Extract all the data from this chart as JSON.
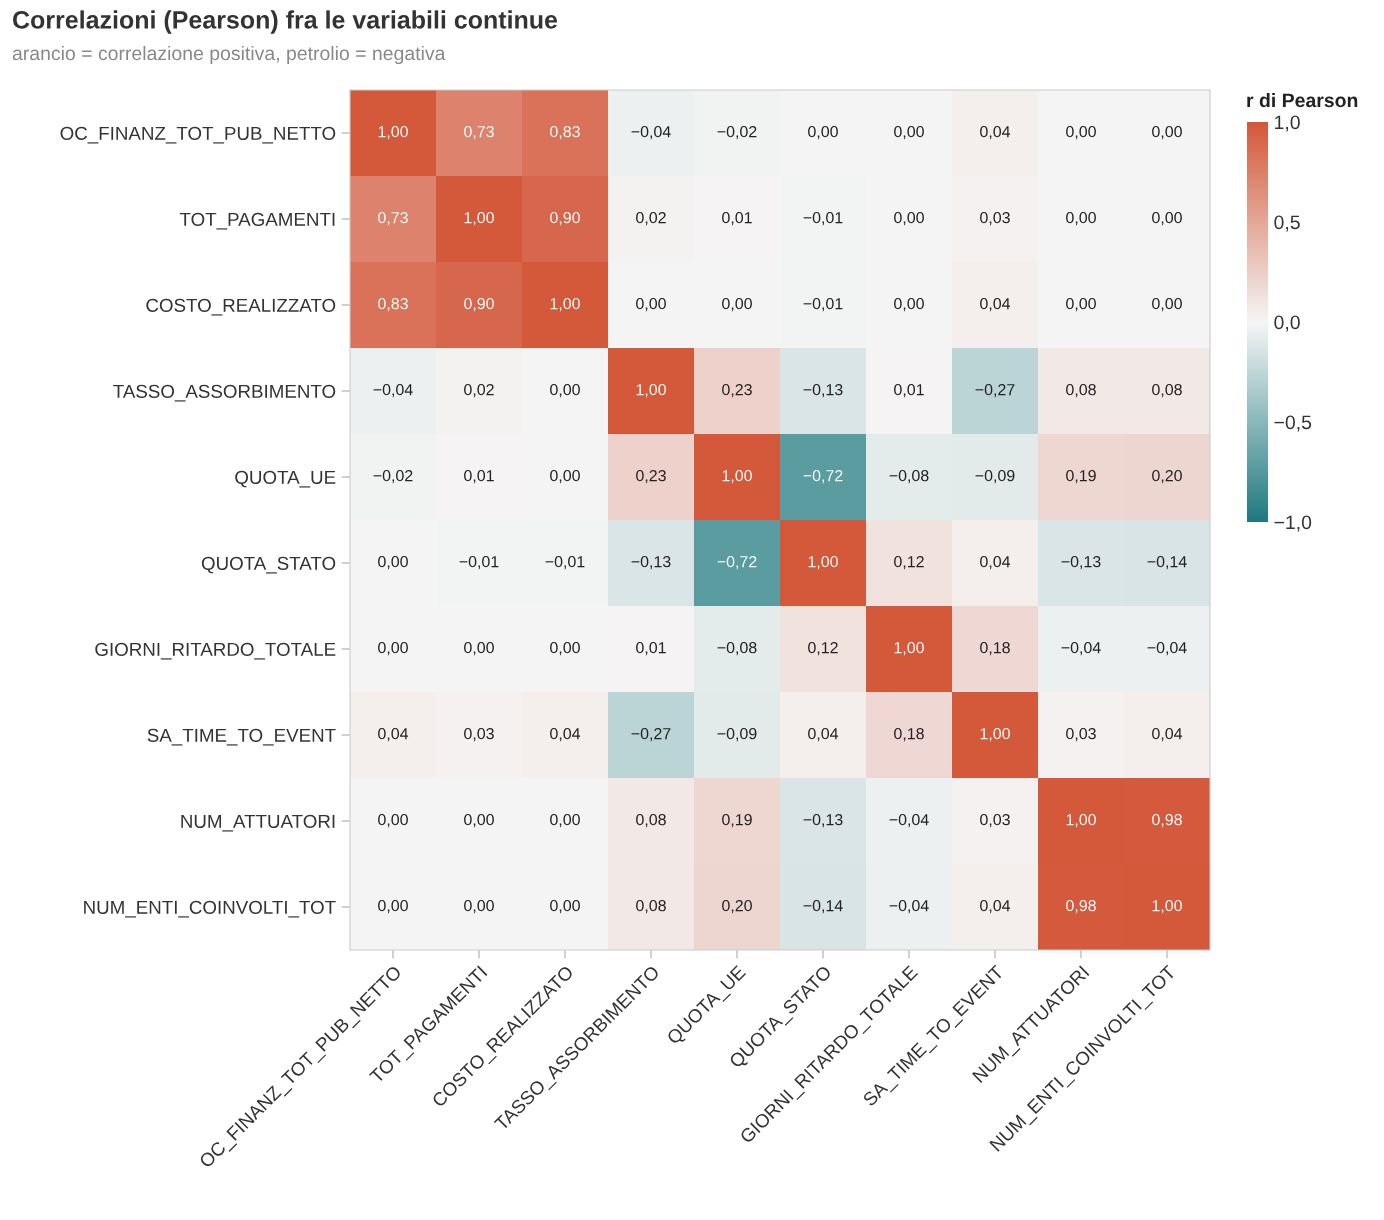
{
  "chart_data": {
    "type": "heatmap",
    "title": "Correlazioni (Pearson) fra le variabili continue",
    "subtitle": "arancio = correlazione positiva, petrolio = negativa",
    "clabel": "r di Pearson",
    "categories": [
      "OC_FINANZ_TOT_PUB_NETTO",
      "TOT_PAGAMENTI",
      "COSTO_REALIZZATO",
      "TASSO_ASSORBIMENTO",
      "QUOTA_UE",
      "QUOTA_STATO",
      "GIORNI_RITARDO_TOTALE",
      "SA_TIME_TO_EVENT",
      "NUM_ATTUATORI",
      "NUM_ENTI_COINVOLTI_TOT"
    ],
    "y_categories": [
      "OC_FINANZ_TOT_PUB_NETTO",
      "TOT_PAGAMENTI",
      "COSTO_REALIZZATO",
      "TASSO_ASSORBIMENTO",
      "QUOTA_UE",
      "QUOTA_STATO",
      "GIORNI_RITARDO_TOTALE",
      "SA_TIME_TO_EVENT",
      "NUM_ATTUATORI",
      "NUM_ENTI_COINVOLTI_TOT"
    ],
    "cells": [
      [
        1.0,
        0.73,
        0.83,
        -0.04,
        -0.02,
        0.0,
        0.0,
        0.04,
        0.0,
        0.0
      ],
      [
        0.73,
        1.0,
        0.9,
        0.02,
        0.01,
        -0.01,
        0.0,
        0.03,
        0.0,
        0.0
      ],
      [
        0.83,
        0.9,
        1.0,
        0.0,
        0.0,
        -0.01,
        0.0,
        0.04,
        0.0,
        0.0
      ],
      [
        -0.04,
        0.02,
        0.0,
        1.0,
        0.23,
        -0.13,
        0.01,
        -0.27,
        0.08,
        0.08
      ],
      [
        -0.02,
        0.01,
        0.0,
        0.23,
        1.0,
        -0.72,
        -0.08,
        -0.09,
        0.19,
        0.2
      ],
      [
        0.0,
        -0.01,
        -0.01,
        -0.13,
        -0.72,
        1.0,
        0.12,
        0.04,
        -0.13,
        -0.14
      ],
      [
        0.0,
        0.0,
        0.0,
        0.01,
        -0.08,
        0.12,
        1.0,
        0.18,
        -0.04,
        -0.04
      ],
      [
        0.04,
        0.03,
        0.04,
        -0.27,
        -0.09,
        0.04,
        0.18,
        1.0,
        0.03,
        0.04
      ],
      [
        0.0,
        0.0,
        0.0,
        0.08,
        0.19,
        -0.13,
        -0.04,
        0.03,
        1.0,
        0.98
      ],
      [
        0.0,
        0.0,
        0.0,
        0.08,
        0.2,
        -0.14,
        -0.04,
        0.04,
        0.98,
        1.0
      ]
    ],
    "cell_labels": [
      [
        "1,00",
        "0,73",
        "0,83",
        "−0,04",
        "−0,02",
        "0,00",
        "0,00",
        "0,04",
        "0,00",
        "0,00"
      ],
      [
        "0,73",
        "1,00",
        "0,90",
        "0,02",
        "0,01",
        "−0,01",
        "0,00",
        "0,03",
        "0,00",
        "0,00"
      ],
      [
        "0,83",
        "0,90",
        "1,00",
        "0,00",
        "0,00",
        "−0,01",
        "0,00",
        "0,04",
        "0,00",
        "0,00"
      ],
      [
        "−0,04",
        "0,02",
        "0,00",
        "1,00",
        "0,23",
        "−0,13",
        "0,01",
        "−0,27",
        "0,08",
        "0,08"
      ],
      [
        "−0,02",
        "0,01",
        "0,00",
        "0,23",
        "1,00",
        "−0,72",
        "−0,08",
        "−0,09",
        "0,19",
        "0,20"
      ],
      [
        "0,00",
        "−0,01",
        "−0,01",
        "−0,13",
        "−0,72",
        "1,00",
        "0,12",
        "0,04",
        "−0,13",
        "−0,14"
      ],
      [
        "0,00",
        "0,00",
        "0,00",
        "0,01",
        "−0,08",
        "0,12",
        "1,00",
        "0,18",
        "−0,04",
        "−0,04"
      ],
      [
        "0,04",
        "0,03",
        "0,04",
        "−0,27",
        "−0,09",
        "0,04",
        "0,18",
        "1,00",
        "0,03",
        "0,04"
      ],
      [
        "0,00",
        "0,00",
        "0,00",
        "0,08",
        "0,19",
        "−0,13",
        "−0,04",
        "0,03",
        "1,00",
        "0,98"
      ],
      [
        "0,00",
        "0,00",
        "0,00",
        "0,08",
        "0,20",
        "−0,14",
        "−0,04",
        "0,04",
        "0,98",
        "1,00"
      ]
    ],
    "colors": [
      "#1f7a80",
      "#f5f5f5",
      "#d4583a"
    ],
    "clim": [
      -1,
      1
    ],
    "cticks": [
      {
        "value": 1,
        "label": "1,0"
      },
      {
        "value": 0.5,
        "label": "0,5"
      },
      {
        "value": 0,
        "label": "0,0"
      },
      {
        "value": -0.5,
        "label": "−0,5"
      },
      {
        "value": -1,
        "label": "−1,0"
      }
    ]
  }
}
